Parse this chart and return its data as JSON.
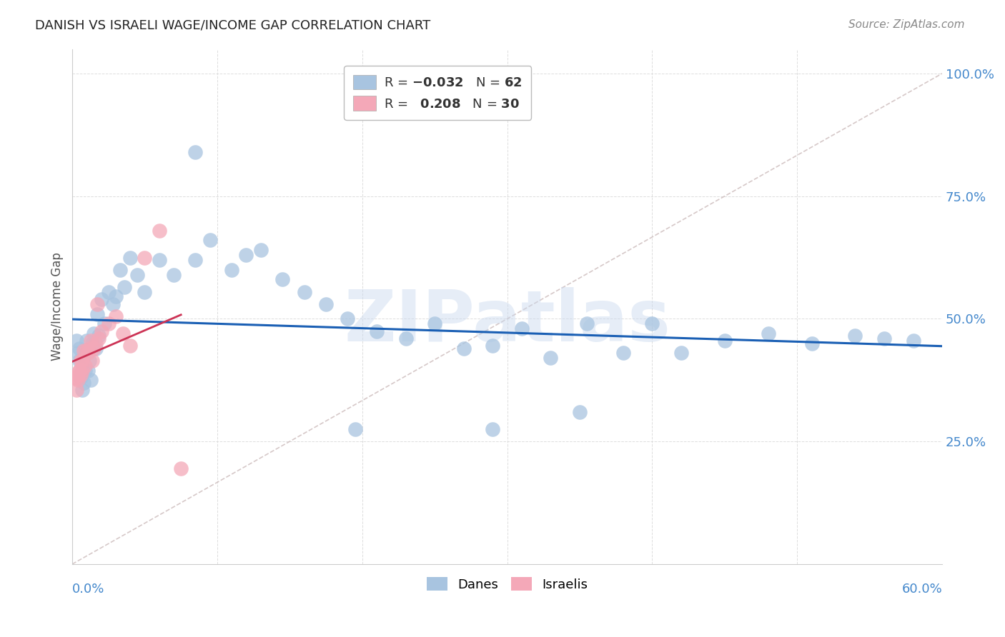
{
  "title": "DANISH VS ISRAELI WAGE/INCOME GAP CORRELATION CHART",
  "source": "Source: ZipAtlas.com",
  "ylabel": "Wage/Income Gap",
  "watermark": "ZIPatlas",
  "danes_color": "#a8c4e0",
  "danes_edge_color": "#6699cc",
  "israelis_color": "#f4a8b8",
  "israelis_edge_color": "#cc6688",
  "blue_line_color": "#1a5fb4",
  "pink_line_color": "#cc3355",
  "dash_line_color": "#ccbbbb",
  "background_color": "#ffffff",
  "grid_color": "#dddddd",
  "title_color": "#222222",
  "right_ytick_color": "#4488cc",
  "axis_label_color": "#4488cc",
  "danes_x": [
    0.003,
    0.004,
    0.005,
    0.005,
    0.006,
    0.007,
    0.007,
    0.008,
    0.008,
    0.009,
    0.01,
    0.01,
    0.011,
    0.012,
    0.013,
    0.014,
    0.015,
    0.016,
    0.017,
    0.018,
    0.02,
    0.022,
    0.025,
    0.028,
    0.03,
    0.033,
    0.036,
    0.04,
    0.045,
    0.05,
    0.06,
    0.07,
    0.085,
    0.095,
    0.11,
    0.12,
    0.13,
    0.145,
    0.16,
    0.175,
    0.19,
    0.21,
    0.23,
    0.25,
    0.27,
    0.29,
    0.31,
    0.33,
    0.355,
    0.38,
    0.4,
    0.42,
    0.45,
    0.48,
    0.51,
    0.54,
    0.56,
    0.58,
    0.35,
    0.29,
    0.195,
    0.085
  ],
  "danes_y": [
    0.455,
    0.43,
    0.415,
    0.44,
    0.38,
    0.355,
    0.395,
    0.37,
    0.42,
    0.395,
    0.43,
    0.455,
    0.395,
    0.415,
    0.375,
    0.45,
    0.47,
    0.44,
    0.51,
    0.465,
    0.54,
    0.49,
    0.555,
    0.53,
    0.545,
    0.6,
    0.565,
    0.625,
    0.59,
    0.555,
    0.62,
    0.59,
    0.62,
    0.66,
    0.6,
    0.63,
    0.64,
    0.58,
    0.555,
    0.53,
    0.5,
    0.475,
    0.46,
    0.49,
    0.44,
    0.445,
    0.48,
    0.42,
    0.49,
    0.43,
    0.49,
    0.43,
    0.455,
    0.47,
    0.45,
    0.465,
    0.46,
    0.455,
    0.31,
    0.275,
    0.275,
    0.84
  ],
  "israelis_x": [
    0.002,
    0.003,
    0.003,
    0.004,
    0.004,
    0.005,
    0.005,
    0.006,
    0.006,
    0.007,
    0.007,
    0.008,
    0.009,
    0.01,
    0.011,
    0.012,
    0.013,
    0.014,
    0.015,
    0.016,
    0.017,
    0.018,
    0.02,
    0.025,
    0.03,
    0.035,
    0.04,
    0.05,
    0.06,
    0.075
  ],
  "israelis_y": [
    0.38,
    0.355,
    0.38,
    0.375,
    0.385,
    0.395,
    0.395,
    0.415,
    0.385,
    0.395,
    0.415,
    0.435,
    0.405,
    0.435,
    0.43,
    0.44,
    0.455,
    0.415,
    0.44,
    0.45,
    0.53,
    0.46,
    0.475,
    0.49,
    0.505,
    0.47,
    0.445,
    0.625,
    0.68,
    0.195
  ],
  "xlim": [
    0.0,
    0.6
  ],
  "ylim": [
    0.0,
    1.05
  ],
  "yticks": [
    0.0,
    0.25,
    0.5,
    0.75,
    1.0
  ],
  "ytick_labels_right": [
    "",
    "25.0%",
    "50.0%",
    "75.0%",
    "100.0%"
  ]
}
